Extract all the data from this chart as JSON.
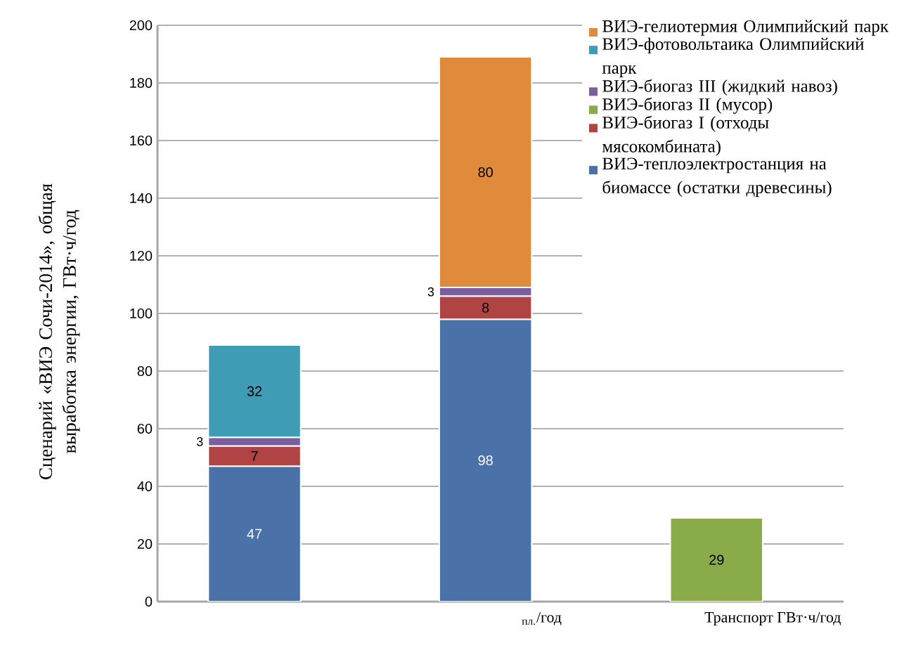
{
  "chart_data": {
    "type": "bar",
    "stacked": true,
    "ylabel": "Сценарий «ВИЭ Сочи-2014», общая выработка энергии, ГВт·ч/год",
    "categories": [
      null,
      "$_{пл.}$/год",
      "Транспорт ГВт·ч/год"
    ],
    "series": [
      {
        "name": "ВИЭ-теплоэлектростанция на биомассе (остатки древесины)",
        "color": "#4a72a8",
        "values": [
          47,
          98,
          null
        ]
      },
      {
        "name": "ВИЭ-биогаз I (отходы мясокомбината)",
        "color": "#b04444",
        "values": [
          7,
          8,
          null
        ]
      },
      {
        "name": "ВИЭ-биогаз II (мусор)",
        "color": "#8aab4a",
        "values": [
          null,
          null,
          29
        ]
      },
      {
        "name": "ВИЭ-биогаз III (жидкий навоз)",
        "color": "#7b5e9e",
        "values": [
          3,
          3,
          null
        ]
      },
      {
        "name": "ВИЭ-фотовольтаика Олимпийский парк",
        "color": "#3e9cb4",
        "values": [
          32,
          null,
          null
        ]
      },
      {
        "name": "ВИЭ-гелиотермия Олимпийский парк",
        "color": "#e08a3c",
        "values": [
          null,
          80,
          null
        ]
      }
    ],
    "ylim": [
      0,
      200
    ],
    "yticks": [
      0,
      20,
      40,
      60,
      80,
      100,
      120,
      140,
      160,
      180,
      200
    ],
    "grid": "y",
    "legend": "top right",
    "data_labels": true
  }
}
